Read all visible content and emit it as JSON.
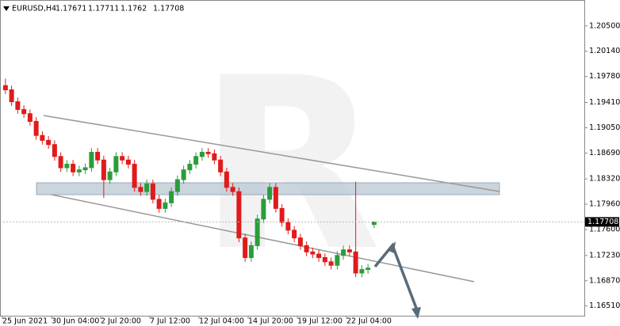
{
  "chart_data": {
    "type": "candlestick",
    "title": "EURUSD,H4",
    "grid": false,
    "up_color": "#2a9d3a",
    "down_color": "#e01b1b",
    "ylim": [
      1.1636,
      1.2087
    ],
    "yticks": [
      {
        "value": 1.1651,
        "label": "1.16510"
      },
      {
        "value": 1.1687,
        "label": "1.16870"
      },
      {
        "value": 1.1723,
        "label": "1.17230"
      },
      {
        "value": 1.176,
        "label": "1.17600"
      },
      {
        "value": 1.1796,
        "label": "1.17960"
      },
      {
        "value": 1.1832,
        "label": "1.18320"
      },
      {
        "value": 1.1869,
        "label": "1.18690"
      },
      {
        "value": 1.1905,
        "label": "1.19050"
      },
      {
        "value": 1.1941,
        "label": "1.19410"
      },
      {
        "value": 1.1978,
        "label": "1.19780"
      },
      {
        "value": 1.2014,
        "label": "1.20140"
      },
      {
        "value": 1.205,
        "label": "1.20500"
      }
    ],
    "categories": [
      "25 Jun 2021",
      null,
      null,
      null,
      null,
      null,
      null,
      null,
      "30 Jun 04:00",
      null,
      null,
      null,
      null,
      null,
      null,
      null,
      "2 Jul 20:00",
      null,
      null,
      null,
      null,
      null,
      null,
      null,
      "7 Jul 12:00",
      null,
      null,
      null,
      null,
      null,
      null,
      null,
      "12 Jul 04:00",
      null,
      null,
      null,
      null,
      null,
      null,
      null,
      "14 Jul 20:00",
      null,
      null,
      null,
      null,
      null,
      null,
      null,
      "19 Jul 12:00",
      null,
      null,
      null,
      null,
      null,
      null,
      null,
      "22 Jul 04:00",
      null,
      null,
      null,
      null
    ],
    "open": [
      1.1965,
      1.1959,
      1.1942,
      1.1931,
      1.1925,
      1.1914,
      1.1894,
      1.1887,
      1.1881,
      1.1864,
      1.1848,
      1.1853,
      1.1842,
      1.1845,
      1.1848,
      1.187,
      1.1859,
      1.1831,
      1.1842,
      1.1864,
      1.1859,
      1.1853,
      1.182,
      1.1814,
      1.1825,
      1.1803,
      1.179,
      1.1798,
      1.1814,
      1.1831,
      1.1845,
      1.1853,
      1.1864,
      1.187,
      1.1868,
      1.1859,
      1.1842,
      1.182,
      1.1814,
      1.1748,
      1.172,
      1.1737,
      1.1775,
      1.1803,
      1.182,
      1.179,
      1.177,
      1.1759,
      1.1748,
      1.1737,
      1.1728,
      1.1725,
      1.172,
      1.1714,
      1.1709,
      1.1723,
      1.1731,
      1.1728,
      1.1698,
      1.1703,
      1.17671
    ],
    "high": [
      1.1975,
      1.1965,
      1.1948,
      1.1937,
      1.1931,
      1.192,
      1.19,
      1.1893,
      1.1887,
      1.187,
      1.1859,
      1.1859,
      1.1851,
      1.1854,
      1.1876,
      1.1876,
      1.1865,
      1.1848,
      1.187,
      1.187,
      1.1865,
      1.1859,
      1.1826,
      1.1831,
      1.1831,
      1.1809,
      1.1804,
      1.182,
      1.1837,
      1.1851,
      1.1859,
      1.187,
      1.1876,
      1.1876,
      1.1874,
      1.1865,
      1.1848,
      1.1826,
      1.182,
      1.1754,
      1.1743,
      1.1781,
      1.1809,
      1.1826,
      1.1826,
      1.1796,
      1.1776,
      1.1765,
      1.1754,
      1.1743,
      1.1734,
      1.1731,
      1.1726,
      1.172,
      1.1729,
      1.1737,
      1.1737,
      1.1828,
      1.1709,
      1.1711,
      1.17711
    ],
    "low": [
      1.1953,
      1.1936,
      1.1925,
      1.1919,
      1.1908,
      1.1888,
      1.1881,
      1.1875,
      1.1858,
      1.1842,
      1.1842,
      1.1836,
      1.1836,
      1.1839,
      1.1842,
      1.1853,
      1.1805,
      1.1825,
      1.1836,
      1.1853,
      1.1847,
      1.1814,
      1.1808,
      1.1808,
      1.1797,
      1.1784,
      1.1784,
      1.1792,
      1.1808,
      1.1825,
      1.1839,
      1.1847,
      1.1858,
      1.1862,
      1.1853,
      1.1836,
      1.1814,
      1.1808,
      1.1742,
      1.1714,
      1.1714,
      1.1731,
      1.1769,
      1.1797,
      1.1784,
      1.1764,
      1.1753,
      1.1742,
      1.1731,
      1.1722,
      1.1719,
      1.1714,
      1.1708,
      1.1703,
      1.1703,
      1.1717,
      1.1722,
      1.1692,
      1.1692,
      1.1697,
      1.1762
    ],
    "close": [
      1.1959,
      1.1942,
      1.1931,
      1.1925,
      1.1914,
      1.1894,
      1.1887,
      1.1881,
      1.1864,
      1.1848,
      1.1853,
      1.1842,
      1.1845,
      1.1848,
      1.187,
      1.1859,
      1.1831,
      1.1842,
      1.1864,
      1.1859,
      1.1853,
      1.182,
      1.1814,
      1.1825,
      1.1803,
      1.179,
      1.1798,
      1.1814,
      1.1831,
      1.1845,
      1.1853,
      1.1864,
      1.187,
      1.1868,
      1.1859,
      1.1842,
      1.182,
      1.1814,
      1.1748,
      1.172,
      1.1737,
      1.1775,
      1.1803,
      1.182,
      1.179,
      1.177,
      1.1759,
      1.1748,
      1.1737,
      1.1728,
      1.1725,
      1.172,
      1.1714,
      1.1709,
      1.1723,
      1.1731,
      1.1728,
      1.1698,
      1.1703,
      1.1705,
      1.17708
    ]
  }
}
